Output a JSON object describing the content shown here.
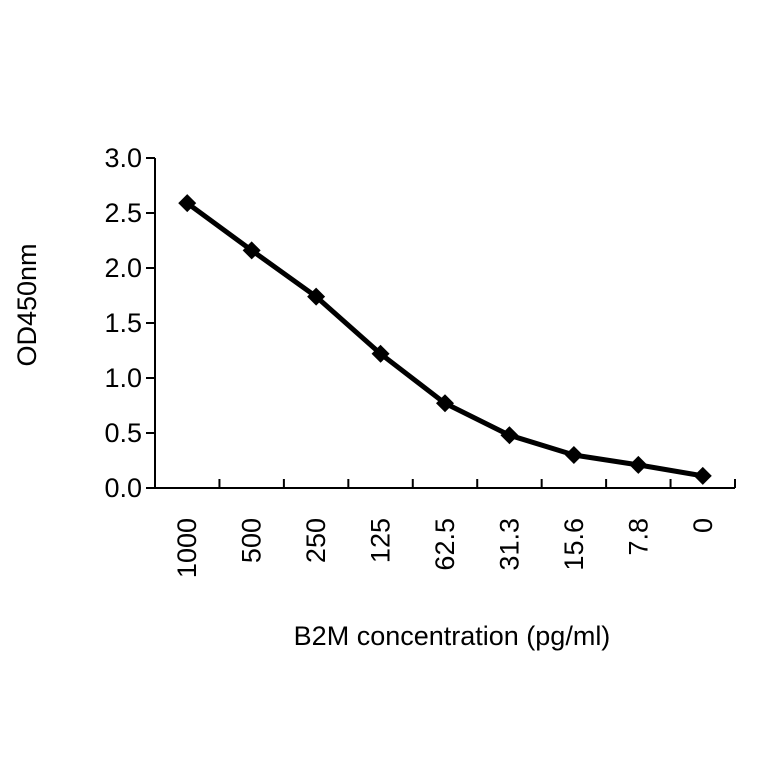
{
  "chart_data": {
    "type": "line",
    "title": "",
    "xlabel": "B2M concentration (pg/ml)",
    "ylabel": "OD450nm",
    "categories": [
      "1000",
      "500",
      "250",
      "125",
      "62.5",
      "31.3",
      "15.6",
      "7.8",
      "0"
    ],
    "series": [
      {
        "values": [
          2.59,
          2.16,
          1.74,
          1.22,
          0.77,
          0.48,
          0.3,
          0.21,
          0.11
        ],
        "color": "#000000",
        "marker": "diamond"
      }
    ],
    "ylim": [
      0,
      3.0
    ],
    "yticks": [
      "0.0",
      "0.5",
      "1.0",
      "1.5",
      "2.0",
      "2.5",
      "3.0"
    ],
    "grid": false,
    "legend": "none"
  }
}
